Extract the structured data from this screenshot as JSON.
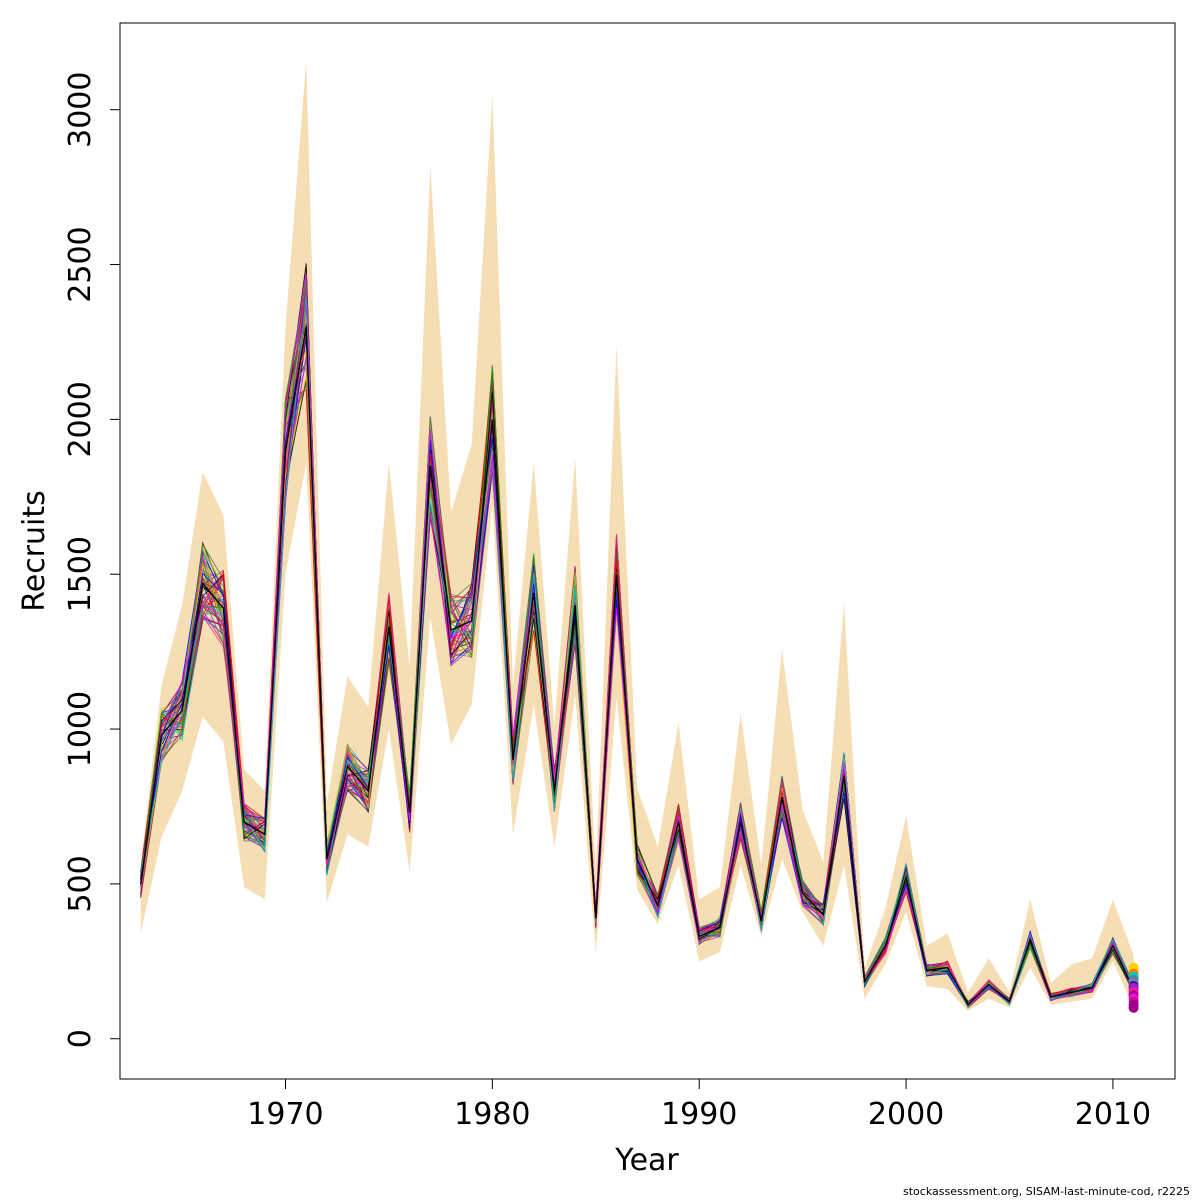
{
  "chart_data": {
    "type": "line",
    "xlabel": "Year",
    "ylabel": "Recruits",
    "xlim": [
      1962,
      2013
    ],
    "ylim": [
      -130,
      3280
    ],
    "x_ticks": [
      1970,
      1980,
      1990,
      2000,
      2010
    ],
    "y_ticks": [
      0,
      500,
      1000,
      1500,
      2000,
      2500,
      3000
    ],
    "grid": false,
    "legend": "none",
    "band_color": "#f5deb3",
    "series_colors": [
      "#000000",
      "#ff0000",
      "#00b000",
      "#0000ff",
      "#00c8c8",
      "#ff00ff",
      "#ffd000",
      "#808080",
      "#a0008c",
      "#ff8000",
      "#8a2be2",
      "#2e8b57",
      "#b22222",
      "#ff1493",
      "#4682b4",
      "#9acd32",
      "#556b2f",
      "#c71585"
    ],
    "years": [
      1963,
      1964,
      1965,
      1966,
      1967,
      1968,
      1969,
      1970,
      1971,
      1972,
      1973,
      1974,
      1975,
      1976,
      1977,
      1978,
      1979,
      1980,
      1981,
      1982,
      1983,
      1984,
      1985,
      1986,
      1987,
      1988,
      1989,
      1990,
      1991,
      1992,
      1993,
      1994,
      1995,
      1996,
      1997,
      1998,
      1999,
      2000,
      2001,
      2002,
      2003,
      2004,
      2005,
      2006,
      2007,
      2008,
      2009,
      2010,
      2011
    ],
    "median": [
      500,
      980,
      1060,
      1470,
      1390,
      700,
      660,
      1900,
      2300,
      580,
      880,
      800,
      1330,
      730,
      1850,
      1320,
      1350,
      2000,
      900,
      1440,
      800,
      1400,
      390,
      1500,
      580,
      430,
      700,
      330,
      360,
      700,
      380,
      780,
      470,
      400,
      850,
      185,
      300,
      520,
      220,
      230,
      110,
      175,
      120,
      320,
      135,
      150,
      165,
      300,
      160
    ],
    "band_upper": [
      560,
      1140,
      1400,
      1830,
      1690,
      870,
      800,
      2300,
      3160,
      760,
      1170,
      1070,
      1860,
      1200,
      2820,
      1700,
      1920,
      3050,
      1140,
      1860,
      1010,
      1880,
      540,
      2240,
      810,
      620,
      1020,
      450,
      490,
      1050,
      560,
      1260,
      740,
      570,
      1410,
      230,
      420,
      720,
      300,
      340,
      150,
      260,
      150,
      450,
      180,
      240,
      260,
      450,
      270
    ],
    "band_lower": [
      340,
      650,
      800,
      1040,
      960,
      490,
      450,
      1500,
      1860,
      440,
      660,
      620,
      1000,
      540,
      1360,
      950,
      1080,
      1720,
      660,
      1080,
      620,
      1110,
      280,
      1100,
      480,
      370,
      560,
      250,
      280,
      560,
      330,
      580,
      410,
      300,
      560,
      130,
      240,
      410,
      170,
      160,
      90,
      130,
      100,
      230,
      110,
      120,
      130,
      250,
      100
    ],
    "terminal_points": [
      230,
      220,
      210,
      200,
      190,
      180,
      170,
      165,
      160,
      150,
      140,
      130,
      120,
      110,
      100
    ],
    "terminal_point_colors": [
      "#ffd000",
      "#ffd000",
      "#ff8000",
      "#00c8c8",
      "#4682b4",
      "#808080",
      "#0000ff",
      "#c71585",
      "#8a2be2",
      "#ff1493",
      "#a0008c",
      "#ff00ff",
      "#c71585",
      "#a0008c",
      "#a0008c"
    ]
  },
  "footer": "stockassessment.org, SISAM-last-minute-cod, r2225"
}
